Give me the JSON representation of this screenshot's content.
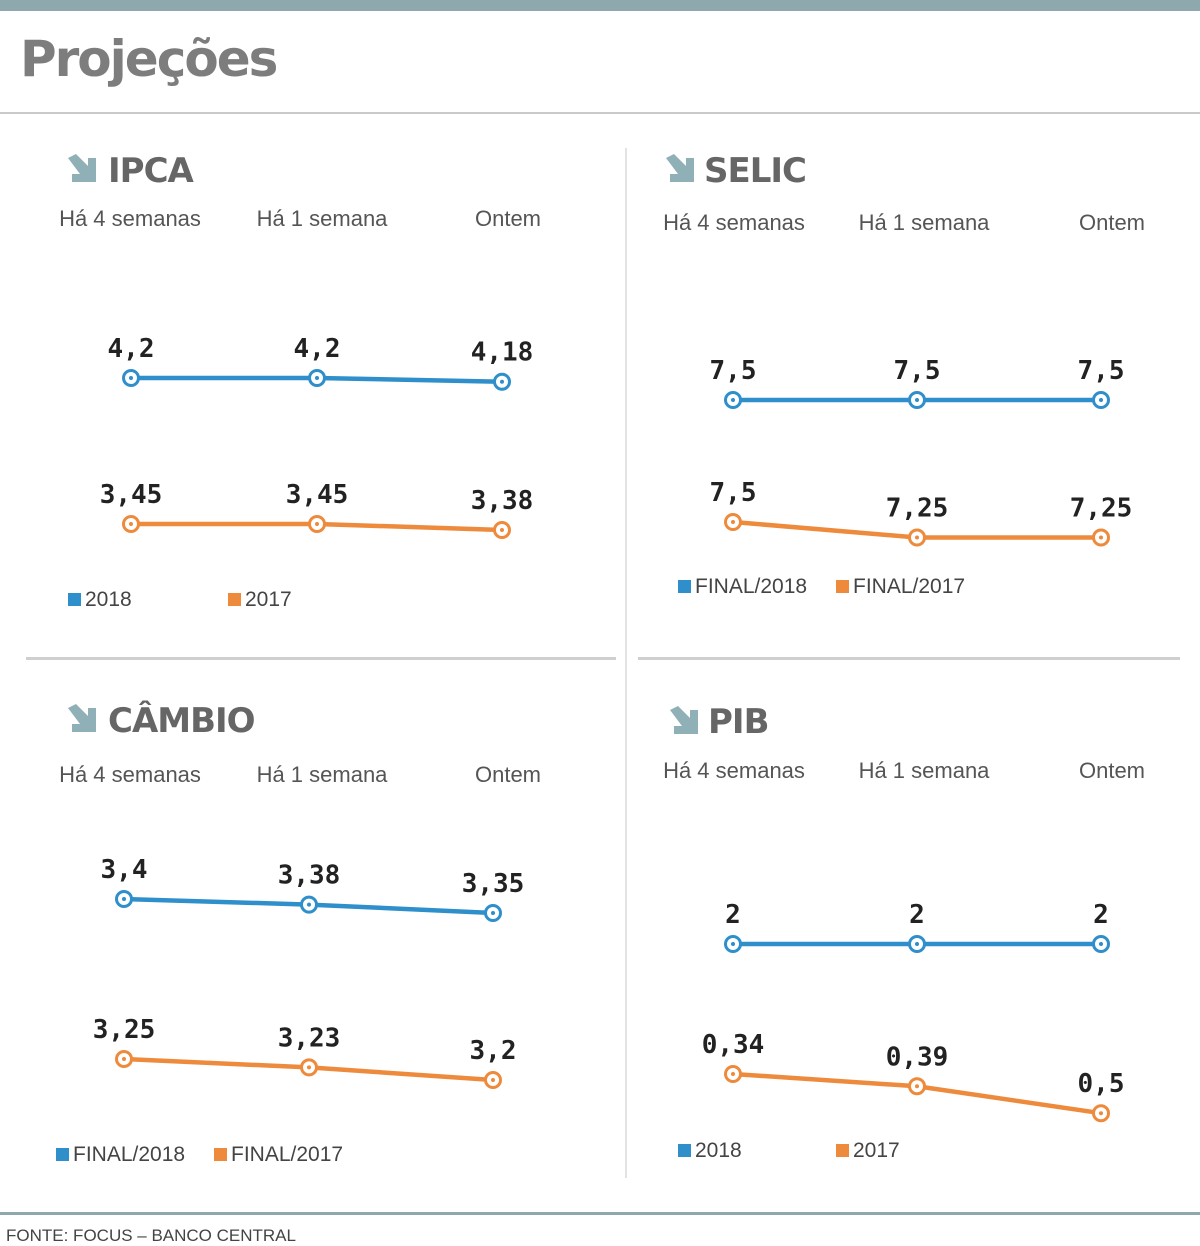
{
  "title": "Projeções",
  "source": "FONTE: FOCUS – BANCO CENTRAL",
  "colors": {
    "series_a": "#2e8fcb",
    "series_b": "#ee8a3c",
    "icon": "#8fb0b6"
  },
  "chart_data": [
    {
      "type": "line",
      "title": "IPCA",
      "icon": "arrow-down-right-icon",
      "categories": [
        "Há 4 semanas",
        "Há 1 semana",
        "Ontem"
      ],
      "series": [
        {
          "name": "2018",
          "values": [
            4.2,
            4.2,
            4.18
          ],
          "labels": [
            "4,2",
            "4,2",
            "4,18"
          ]
        },
        {
          "name": "2017",
          "values": [
            3.45,
            3.45,
            3.38
          ],
          "labels": [
            "3,45",
            "3,45",
            "3,38"
          ]
        }
      ]
    },
    {
      "type": "line",
      "title": "SELIC",
      "icon": "arrow-down-right-icon",
      "categories": [
        "Há 4 semanas",
        "Há 1 semana",
        "Ontem"
      ],
      "series": [
        {
          "name": "FINAL/2018",
          "values": [
            7.5,
            7.5,
            7.5
          ],
          "labels": [
            "7,5",
            "7,5",
            "7,5"
          ]
        },
        {
          "name": "FINAL/2017",
          "values": [
            7.5,
            7.25,
            7.25
          ],
          "labels": [
            "7,5",
            "7,25",
            "7,25"
          ]
        }
      ]
    },
    {
      "type": "line",
      "title": "CÂMBIO",
      "icon": "arrow-down-right-icon",
      "categories": [
        "Há 4 semanas",
        "Há 1 semana",
        "Ontem"
      ],
      "series": [
        {
          "name": "FINAL/2018",
          "values": [
            3.4,
            3.38,
            3.35
          ],
          "labels": [
            "3,4",
            "3,38",
            "3,35"
          ]
        },
        {
          "name": "FINAL/2017",
          "values": [
            3.25,
            3.23,
            3.2
          ],
          "labels": [
            "3,25",
            "3,23",
            "3,2"
          ]
        }
      ]
    },
    {
      "type": "line",
      "title": "PIB",
      "icon": "arrow-down-right-icon",
      "categories": [
        "Há 4 semanas",
        "Há 1 semana",
        "Ontem"
      ],
      "series": [
        {
          "name": "2018",
          "values": [
            2,
            2,
            2
          ],
          "labels": [
            "2",
            "2",
            "2"
          ]
        },
        {
          "name": "2017",
          "values": [
            0.34,
            0.39,
            0.5
          ],
          "labels": [
            "0,34",
            "0,39",
            "0,5"
          ]
        }
      ]
    }
  ]
}
